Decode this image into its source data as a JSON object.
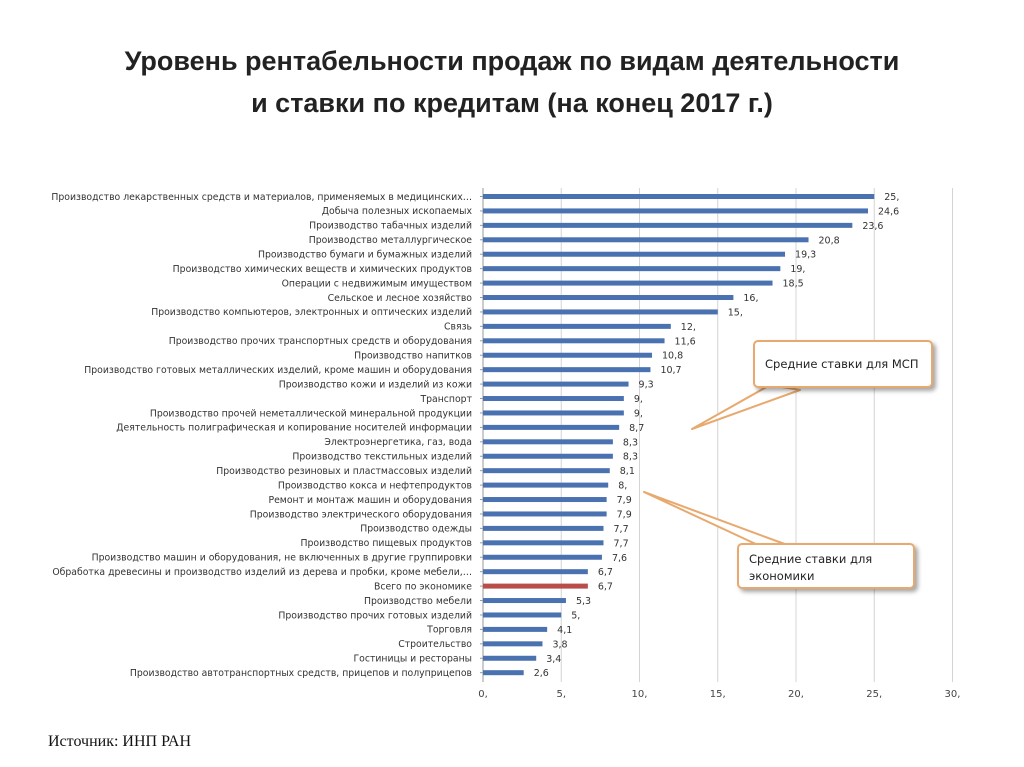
{
  "title": {
    "line1": "Уровень рентабельности продаж по видам деятельности",
    "line2": "и ставки по кредитам (на конец 2017 г.)"
  },
  "chart_data": {
    "type": "bar",
    "orientation": "horizontal",
    "categories": [
      "Производство лекарственных средств и материалов, применяемых в медицинских…",
      "Добыча полезных ископаемых",
      "Производство табачных изделий",
      "Производство металлургическое",
      "Производство бумаги и бумажных изделий",
      "Производство химических веществ и химических продуктов",
      "Операции с недвижимым имуществом",
      "Сельское и лесное хозяйство",
      "Производство компьютеров, электронных и оптических изделий",
      "Связь",
      "Производство прочих транспортных средств и оборудования",
      "Производство напитков",
      "Производство готовых металлических изделий, кроме машин и оборудования",
      "Производство кожи и изделий из кожи",
      "Транспорт",
      "Производство прочей неметаллической минеральной продукции",
      "Деятельность полиграфическая и копирование носителей информации",
      "Электроэнергетика, газ, вода",
      "Производство текстильных изделий",
      "Производство резиновых и пластмассовых изделий",
      "Производство кокса и нефтепродуктов",
      "Ремонт и монтаж машин и оборудования",
      "Производство электрического оборудования",
      "Производство одежды",
      "Производство пищевых продуктов",
      "Производство машин и оборудования, не включенных в другие группировки",
      "Обработка древесины и производство изделий из дерева и пробки, кроме мебели,…",
      "Всего по экономике",
      "Производство мебели",
      "Производство прочих готовых изделий",
      "Торговля",
      "Строительство",
      "Гостиницы и рестораны",
      "Производство автотранспортных средств, прицепов и полуприцепов"
    ],
    "values": [
      25,
      24.6,
      23.6,
      20.8,
      19.3,
      19,
      18.5,
      16,
      15,
      12,
      11.6,
      10.8,
      10.7,
      9.3,
      9,
      9,
      8.7,
      8.3,
      8.3,
      8.1,
      8,
      7.9,
      7.9,
      7.7,
      7.7,
      7.6,
      6.7,
      6.7,
      5.3,
      5,
      4.1,
      3.8,
      3.4,
      2.6
    ],
    "value_labels": [
      "25,",
      "24,6",
      "23,6",
      "20,8",
      "19,3",
      "19,",
      "18,5",
      "16,",
      "15,",
      "12,",
      "11,6",
      "10,8",
      "10,7",
      "9,3",
      "9,",
      "9,",
      "8,7",
      "8,3",
      "8,3",
      "8,1",
      "8,",
      "7,9",
      "7,9",
      "7,7",
      "7,7",
      "7,6",
      "6,7",
      "6,7",
      "5,3",
      "5,",
      "4,1",
      "3,8",
      "3,4",
      "2,6"
    ],
    "highlight_index": 27,
    "colors": {
      "bar": "#4a72b0",
      "highlight": "#b84d4a",
      "callout_border": "#e8a96f"
    },
    "xlim": [
      0,
      30
    ],
    "xticks": [
      0,
      5,
      10,
      15,
      20,
      25,
      30
    ],
    "xtick_labels": [
      "0,",
      "5,",
      "10,",
      "15,",
      "20,",
      "25,",
      "30,"
    ],
    "grid": true,
    "annotations": [
      {
        "text": "Средние ставки для МСП",
        "points_to_value": 13
      },
      {
        "text": "Средние ставки для экономики",
        "points_to_value": 10.5
      }
    ]
  },
  "callouts": {
    "msp": "Средние ставки для МСП",
    "economy_line1": "Средние ставки для",
    "economy_line2": "экономики"
  },
  "source": "Источник: ИНП РАН"
}
